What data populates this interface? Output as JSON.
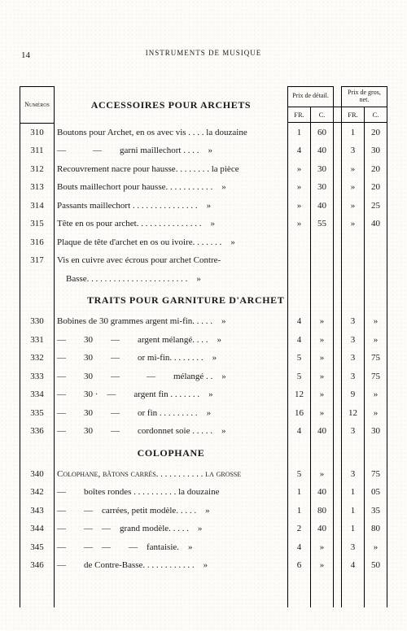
{
  "page_number": "14",
  "running_head": "INSTRUMENTS DE MUSIQUE",
  "header_numeros": "Numéros",
  "header_detail": "Prix de détail.",
  "header_gros": "Prix de gros, net.",
  "header_fr": "FR.",
  "header_c": "C.",
  "section1": "ACCESSOIRES POUR ARCHETS",
  "section2": "TRAITS POUR GARNITURE D'ARCHET",
  "section3": "COLOPHANE",
  "rows_a": [
    {
      "n": "310",
      "d": "Boutons pour Archet, en os avec vis . . . . la douzaine",
      "p1": "1",
      "p2": "60",
      "p3": "1",
      "p4": "20"
    },
    {
      "n": "311",
      "d": "—   —  garni maillechort . . . . »",
      "p1": "4",
      "p2": "40",
      "p3": "3",
      "p4": "30"
    },
    {
      "n": "312",
      "d": "Recouvrement nacre pour hausse. . . . . . . . la pièce",
      "p1": "»",
      "p2": "30",
      "p3": "»",
      "p4": "20"
    },
    {
      "n": "313",
      "d": "Bouts maillechort pour hausse. . . . . . . . . . . »",
      "p1": "»",
      "p2": "30",
      "p3": "»",
      "p4": "20"
    },
    {
      "n": "314",
      "d": "Passants maillechort . . . . . . . . . . . . . . . »",
      "p1": "»",
      "p2": "40",
      "p3": "»",
      "p4": "25"
    },
    {
      "n": "315",
      "d": "Tête en os pour archet. . . . . . . . . . . . . . . »",
      "p1": "»",
      "p2": "55",
      "p3": "»",
      "p4": "40"
    },
    {
      "n": "316",
      "d": "Plaque de tête d'archet en os ou ivoire. . . . . . . »",
      "p1": "",
      "p2": "",
      "p3": "",
      "p4": ""
    },
    {
      "n": "317",
      "d": "Vis en cuivre avec écrous pour archet Contre-",
      "p1": "",
      "p2": "",
      "p3": "",
      "p4": ""
    },
    {
      "n": "",
      "d": " Basse. . . . . . . . . . . . . . . . . . . . . . . »",
      "p1": "",
      "p2": "",
      "p3": "",
      "p4": ""
    }
  ],
  "rows_b": [
    {
      "n": "330",
      "d": "Bobines de 30 grammes argent mi-fin. . . . . »",
      "p1": "4",
      "p2": "»",
      "p3": "3",
      "p4": "»"
    },
    {
      "n": "331",
      "d": "—  30  —  argent mélangé. . . . »",
      "p1": "4",
      "p2": "»",
      "p3": "3",
      "p4": "»"
    },
    {
      "n": "332",
      "d": "—  30  —  or mi-fin. . . . . . . . »",
      "p1": "5",
      "p2": "»",
      "p3": "3",
      "p4": "75"
    },
    {
      "n": "333",
      "d": "—  30  —   —  mélangé . . »",
      "p1": "5",
      "p2": "»",
      "p3": "3",
      "p4": "75"
    },
    {
      "n": "334",
      "d": "—  30 · —  argent fin . . . . . . . »",
      "p1": "12",
      "p2": "»",
      "p3": "9",
      "p4": "»"
    },
    {
      "n": "335",
      "d": "—  30  —  or fin . . . . . . . . . »",
      "p1": "16",
      "p2": "»",
      "p3": "12",
      "p4": "»"
    },
    {
      "n": "336",
      "d": "—  30  —  cordonnet soie . . . . . »",
      "p1": "4",
      "p2": "40",
      "p3": "3",
      "p4": "30"
    }
  ],
  "rows_c": [
    {
      "n": "340",
      "d": "Colophane, bâtons carrés. . . . . . . . . . . la grosse",
      "p1": "5",
      "p2": "»",
      "p3": "3",
      "p4": "75"
    },
    {
      "n": "342",
      "d": "—  boîtes rondes . . . . . . . . . . la douzaine",
      "p1": "1",
      "p2": "40",
      "p3": "1",
      "p4": "05"
    },
    {
      "n": "343",
      "d": "—  — carrées, petit modèle. . . . . »",
      "p1": "1",
      "p2": "80",
      "p3": "1",
      "p4": "35"
    },
    {
      "n": "344",
      "d": "—  — — grand modèle. . . . . »",
      "p1": "2",
      "p2": "40",
      "p3": "1",
      "p4": "80"
    },
    {
      "n": "345",
      "d": "—  — —  — fantaisie. »",
      "p1": "4",
      "p2": "»",
      "p3": "3",
      "p4": "»"
    },
    {
      "n": "346",
      "d": "—  de Contre-Basse. . . . . . . . . . . . »",
      "p1": "6",
      "p2": "»",
      "p3": "4",
      "p4": "50"
    }
  ]
}
